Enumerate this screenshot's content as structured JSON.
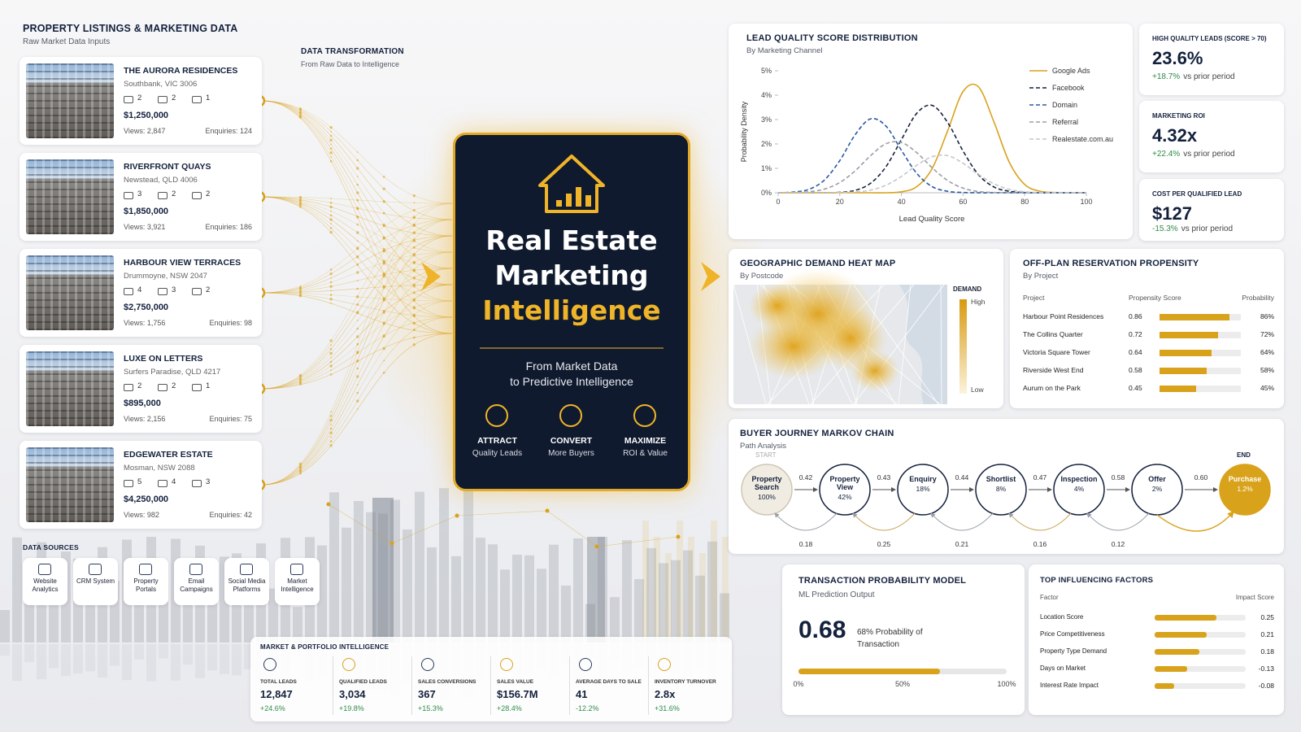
{
  "listings": {
    "title": "PROPERTY LISTINGS & MARKETING DATA",
    "subtitle": "Raw Market Data Inputs",
    "items": [
      {
        "name": "THE AURORA RESIDENCES",
        "location": "Southbank, VIC 3006",
        "beds": 2,
        "baths": 2,
        "cars": 1,
        "price": "$1,250,000",
        "views": "Views: 2,847",
        "enquiries": "Enquiries: 124"
      },
      {
        "name": "RIVERFRONT QUAYS",
        "location": "Newstead, QLD 4006",
        "beds": 3,
        "baths": 2,
        "cars": 2,
        "price": "$1,850,000",
        "views": "Views: 3,921",
        "enquiries": "Enquiries: 186"
      },
      {
        "name": "HARBOUR VIEW TERRACES",
        "location": "Drummoyne, NSW 2047",
        "beds": 4,
        "baths": 3,
        "cars": 2,
        "price": "$2,750,000",
        "views": "Views: 1,756",
        "enquiries": "Enquiries: 98"
      },
      {
        "name": "LUXE ON LETTERS",
        "location": "Surfers Paradise, QLD 4217",
        "beds": 2,
        "baths": 2,
        "cars": 1,
        "price": "$895,000",
        "views": "Views: 2,156",
        "enquiries": "Enquiries: 75"
      },
      {
        "name": "EDGEWATER ESTATE",
        "location": "Mosman, NSW 2088",
        "beds": 5,
        "baths": 4,
        "cars": 3,
        "price": "$4,250,000",
        "views": "Views: 982",
        "enquiries": "Enquiries: 42"
      }
    ]
  },
  "transformation": {
    "title": "DATA TRANSFORMATION",
    "subtitle": "From Raw Data to Intelligence"
  },
  "hero": {
    "title_lines": [
      "Real Estate",
      "Marketing",
      "Intelligence"
    ],
    "tagline_lines": [
      "From Market Data",
      "to Predictive Intelligence"
    ],
    "pillars": [
      {
        "title": "ATTRACT",
        "subtitle": "Quality Leads"
      },
      {
        "title": "CONVERT",
        "subtitle": "More Buyers"
      },
      {
        "title": "MAXIMIZE",
        "subtitle": "ROI & Value"
      }
    ]
  },
  "lead_quality": {
    "type": "line",
    "title": "LEAD QUALITY SCORE DISTRIBUTION",
    "subtitle": "By Marketing Channel",
    "x_label": "Lead Quality Score",
    "y_label": "Probability Density",
    "x": [
      0,
      5,
      10,
      15,
      20,
      25,
      30,
      35,
      40,
      45,
      50,
      55,
      60,
      65,
      70,
      75,
      80,
      85,
      90,
      95,
      100
    ],
    "xlim": [
      0,
      100
    ],
    "xticks": [
      0,
      20,
      40,
      60,
      80,
      100
    ],
    "ylim": [
      0,
      5
    ],
    "yticks": [
      {
        "value": 0,
        "label": "0%"
      },
      {
        "value": 1,
        "label": "1%"
      },
      {
        "value": 2,
        "label": "2%"
      },
      {
        "value": 3,
        "label": "3%"
      },
      {
        "value": 4,
        "label": "4%"
      },
      {
        "value": 5,
        "label": "5%"
      }
    ],
    "series": [
      {
        "name": "Google Ads",
        "color": "#d9a21b",
        "line_style": "solid",
        "values": [
          0,
          0,
          0,
          0,
          0,
          0,
          0,
          0,
          0.04,
          0.25,
          1.0,
          2.54,
          4.15,
          4.34,
          2.91,
          1.25,
          0.34,
          0.06,
          0.01,
          0,
          0
        ]
      },
      {
        "name": "Facebook",
        "color": "#14213d",
        "line_style": "dashed",
        "values": [
          0,
          0,
          0,
          0,
          0.02,
          0.1,
          0.39,
          1.07,
          2.18,
          3.26,
          3.58,
          2.88,
          1.71,
          0.74,
          0.24,
          0.06,
          0.01,
          0,
          0,
          0,
          0
        ]
      },
      {
        "name": "Domain",
        "color": "#2b59a3",
        "line_style": "dashed",
        "values": [
          0,
          0.03,
          0.14,
          0.52,
          1.32,
          2.38,
          3.03,
          2.73,
          1.74,
          0.79,
          0.25,
          0.06,
          0.01,
          0,
          0,
          0,
          0,
          0,
          0,
          0,
          0
        ]
      },
      {
        "name": "Referral",
        "color": "#9a9ea6",
        "line_style": "dashed",
        "values": [
          0,
          0.01,
          0.04,
          0.15,
          0.42,
          0.9,
          1.52,
          2.01,
          2.06,
          1.64,
          1.02,
          0.5,
          0.19,
          0.05,
          0.01,
          0,
          0,
          0,
          0,
          0,
          0
        ]
      },
      {
        "name": "Realestate.com.au",
        "color": "#c4c7cc",
        "line_style": "dashed",
        "values": [
          0,
          0,
          0,
          0,
          0.01,
          0.03,
          0.11,
          0.31,
          0.67,
          1.13,
          1.48,
          1.52,
          1.21,
          0.75,
          0.37,
          0.14,
          0.04,
          0.01,
          0,
          0,
          0
        ]
      }
    ]
  },
  "kpis": [
    {
      "label": "HIGH QUALITY LEADS (SCORE > 70)",
      "value": "23.6%",
      "change": "+18.7%",
      "change_note": "vs prior period"
    },
    {
      "label": "MARKETING ROI",
      "value": "4.32x",
      "change": "+22.4%",
      "change_note": "vs prior period"
    },
    {
      "label": "COST PER QUALIFIED LEAD",
      "value": "$127",
      "change": "-15.3%",
      "change_note": "vs prior period"
    }
  ],
  "heatmap": {
    "title": "GEOGRAPHIC DEMAND HEAT MAP",
    "subtitle": "By Postcode",
    "legend_title": "DEMAND",
    "legend_high": "High",
    "legend_low": "Low"
  },
  "offplan": {
    "title": "OFF-PLAN RESERVATION PROPENSITY",
    "subtitle": "By Project",
    "headers": [
      "Project",
      "Propensity Score",
      "Probability"
    ],
    "rows": [
      {
        "project": "Harbour Point Residences",
        "score": 0.86,
        "probability": {
          "value": 86,
          "label": "86%"
        }
      },
      {
        "project": "The Collins Quarter",
        "score": 0.72,
        "probability": {
          "value": 72,
          "label": "72%"
        }
      },
      {
        "project": "Victoria Square Tower",
        "score": 0.64,
        "probability": {
          "value": 64,
          "label": "64%"
        }
      },
      {
        "project": "Riverside West End",
        "score": 0.58,
        "probability": {
          "value": 58,
          "label": "58%"
        }
      },
      {
        "project": "Aurum on the Park",
        "score": 0.45,
        "probability": {
          "value": 45,
          "label": "45%"
        }
      }
    ]
  },
  "markov": {
    "title": "BUYER JOURNEY MARKOV CHAIN",
    "subtitle": "Path Analysis",
    "start_label": "START",
    "end_label": "END",
    "nodes": [
      {
        "name": "Property Search",
        "share": "100%"
      },
      {
        "name": "Property View",
        "share": "42%"
      },
      {
        "name": "Enquiry",
        "share": "18%"
      },
      {
        "name": "Shortlist",
        "share": "8%"
      },
      {
        "name": "Inspection",
        "share": "4%"
      },
      {
        "name": "Offer",
        "share": "2%"
      },
      {
        "name": "Purchase",
        "share": "1.2%"
      }
    ],
    "forward": [
      "0.42",
      "0.43",
      "0.44",
      "0.47",
      "0.58",
      "0.60"
    ],
    "backward": [
      "0.18",
      "0.25",
      "0.21",
      "0.16",
      "0.12"
    ]
  },
  "transaction": {
    "title": "TRANSACTION PROBABILITY MODEL",
    "subtitle": "ML Prediction Output",
    "probability": 0.68,
    "description": "68% Probability of Transaction",
    "scale_ticks": [
      {
        "value": 0,
        "label": "0%"
      },
      {
        "value": 0.5,
        "label": "50%"
      },
      {
        "value": 1,
        "label": "100%"
      }
    ]
  },
  "factors": {
    "title": "TOP INFLUENCING FACTORS",
    "headers": [
      "Factor",
      "Impact Score"
    ],
    "rows": [
      {
        "factor": "Location Score",
        "impact": 0.25
      },
      {
        "factor": "Price Competitiveness",
        "impact": 0.21
      },
      {
        "factor": "Property Type Demand",
        "impact": 0.18
      },
      {
        "factor": "Days on Market",
        "impact": -0.13
      },
      {
        "factor": "Interest Rate Impact",
        "impact": -0.08
      }
    ]
  },
  "data_sources": {
    "title": "DATA SOURCES",
    "items": [
      "Website Analytics",
      "CRM System",
      "Property Portals",
      "Email Campaigns",
      "Social Media Platforms",
      "Market Intelligence"
    ]
  },
  "portfolio": {
    "title": "MARKET & PORTFOLIO INTELLIGENCE",
    "metrics": [
      {
        "label": "TOTAL LEADS",
        "value": "12,847",
        "change": "+24.6%"
      },
      {
        "label": "QUALIFIED LEADS",
        "value": "3,034",
        "change": "+19.8%"
      },
      {
        "label": "SALES CONVERSIONS",
        "value": "367",
        "change": "+15.3%"
      },
      {
        "label": "SALES VALUE",
        "value": "$156.7M",
        "change": "+28.4%"
      },
      {
        "label": "AVERAGE DAYS TO SALE",
        "value": "41",
        "change": "-12.2%"
      },
      {
        "label": "INVENTORY TURNOVER",
        "value": "2.8x",
        "change": "+31.6%"
      }
    ]
  }
}
